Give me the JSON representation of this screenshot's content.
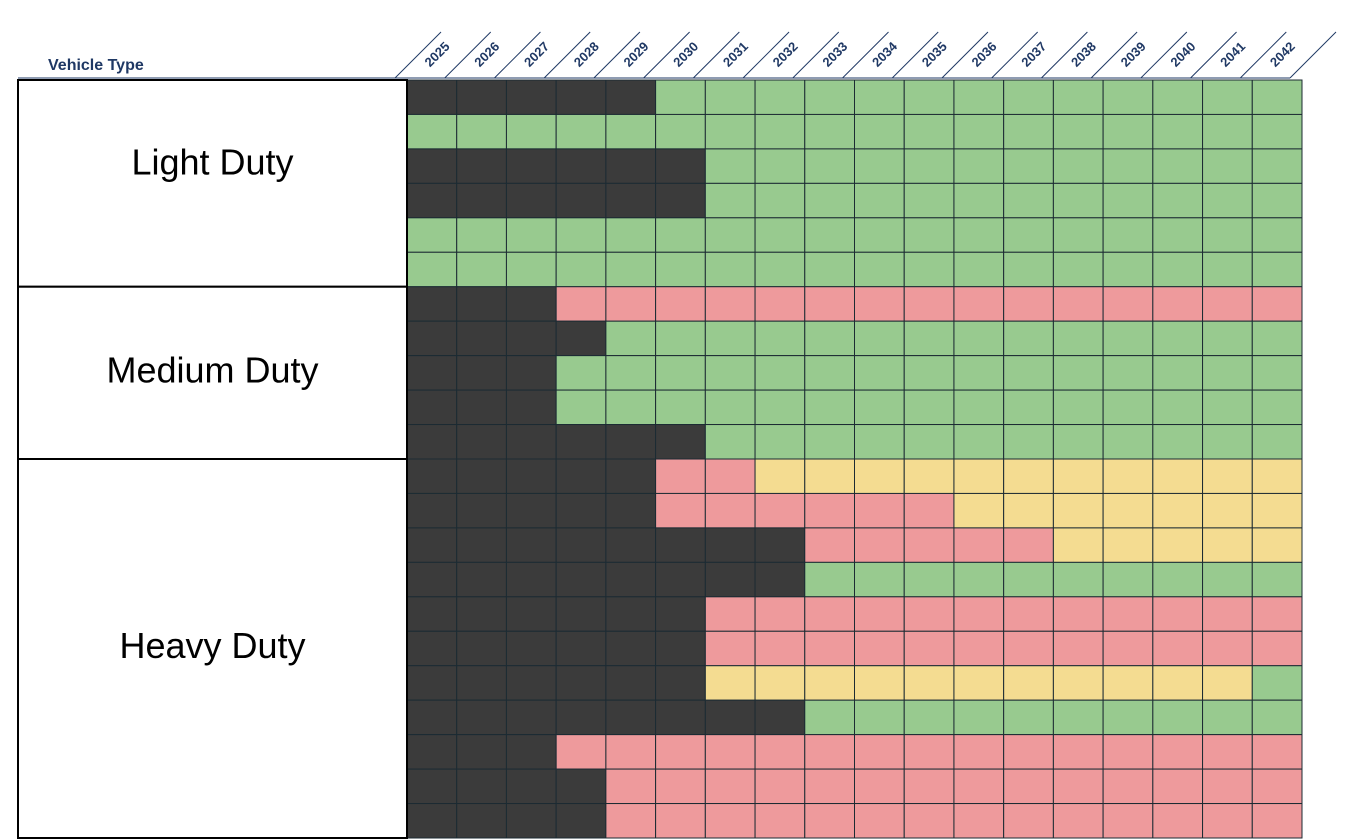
{
  "header": {
    "label": "Vehicle Type",
    "years": [
      "2025",
      "2026",
      "2027",
      "2028",
      "2029",
      "2030",
      "2031",
      "2032",
      "2033",
      "2034",
      "2035",
      "2036",
      "2037",
      "2038",
      "2039",
      "2040",
      "2041",
      "2042"
    ]
  },
  "groups": [
    {
      "label": "Light Duty",
      "rows": [
        [
          "#3b3b3b",
          "#3b3b3b",
          "#3b3b3b",
          "#3b3b3b",
          "#3b3b3b",
          "#98ca8f",
          "#98ca8f",
          "#98ca8f",
          "#98ca8f",
          "#98ca8f",
          "#98ca8f",
          "#98ca8f",
          "#98ca8f",
          "#98ca8f",
          "#98ca8f",
          "#98ca8f",
          "#98ca8f",
          "#98ca8f"
        ],
        [
          "#98ca8f",
          "#98ca8f",
          "#98ca8f",
          "#98ca8f",
          "#98ca8f",
          "#98ca8f",
          "#98ca8f",
          "#98ca8f",
          "#98ca8f",
          "#98ca8f",
          "#98ca8f",
          "#98ca8f",
          "#98ca8f",
          "#98ca8f",
          "#98ca8f",
          "#98ca8f",
          "#98ca8f",
          "#98ca8f"
        ],
        [
          "#3b3b3b",
          "#3b3b3b",
          "#3b3b3b",
          "#3b3b3b",
          "#3b3b3b",
          "#3b3b3b",
          "#98ca8f",
          "#98ca8f",
          "#98ca8f",
          "#98ca8f",
          "#98ca8f",
          "#98ca8f",
          "#98ca8f",
          "#98ca8f",
          "#98ca8f",
          "#98ca8f",
          "#98ca8f",
          "#98ca8f"
        ],
        [
          "#3b3b3b",
          "#3b3b3b",
          "#3b3b3b",
          "#3b3b3b",
          "#3b3b3b",
          "#3b3b3b",
          "#98ca8f",
          "#98ca8f",
          "#98ca8f",
          "#98ca8f",
          "#98ca8f",
          "#98ca8f",
          "#98ca8f",
          "#98ca8f",
          "#98ca8f",
          "#98ca8f",
          "#98ca8f",
          "#98ca8f"
        ],
        [
          "#98ca8f",
          "#98ca8f",
          "#98ca8f",
          "#98ca8f",
          "#98ca8f",
          "#98ca8f",
          "#98ca8f",
          "#98ca8f",
          "#98ca8f",
          "#98ca8f",
          "#98ca8f",
          "#98ca8f",
          "#98ca8f",
          "#98ca8f",
          "#98ca8f",
          "#98ca8f",
          "#98ca8f",
          "#98ca8f"
        ],
        [
          "#98ca8f",
          "#98ca8f",
          "#98ca8f",
          "#98ca8f",
          "#98ca8f",
          "#98ca8f",
          "#98ca8f",
          "#98ca8f",
          "#98ca8f",
          "#98ca8f",
          "#98ca8f",
          "#98ca8f",
          "#98ca8f",
          "#98ca8f",
          "#98ca8f",
          "#98ca8f",
          "#98ca8f",
          "#98ca8f"
        ]
      ]
    },
    {
      "label": "Medium Duty",
      "rows": [
        [
          "#3b3b3b",
          "#3b3b3b",
          "#3b3b3b",
          "#ee9a9c",
          "#ee9a9c",
          "#ee9a9c",
          "#ee9a9c",
          "#ee9a9c",
          "#ee9a9c",
          "#ee9a9c",
          "#ee9a9c",
          "#ee9a9c",
          "#ee9a9c",
          "#ee9a9c",
          "#ee9a9c",
          "#ee9a9c",
          "#ee9a9c",
          "#ee9a9c"
        ],
        [
          "#3b3b3b",
          "#3b3b3b",
          "#3b3b3b",
          "#3b3b3b",
          "#98ca8f",
          "#98ca8f",
          "#98ca8f",
          "#98ca8f",
          "#98ca8f",
          "#98ca8f",
          "#98ca8f",
          "#98ca8f",
          "#98ca8f",
          "#98ca8f",
          "#98ca8f",
          "#98ca8f",
          "#98ca8f",
          "#98ca8f"
        ],
        [
          "#3b3b3b",
          "#3b3b3b",
          "#3b3b3b",
          "#98ca8f",
          "#98ca8f",
          "#98ca8f",
          "#98ca8f",
          "#98ca8f",
          "#98ca8f",
          "#98ca8f",
          "#98ca8f",
          "#98ca8f",
          "#98ca8f",
          "#98ca8f",
          "#98ca8f",
          "#98ca8f",
          "#98ca8f",
          "#98ca8f"
        ],
        [
          "#3b3b3b",
          "#3b3b3b",
          "#3b3b3b",
          "#98ca8f",
          "#98ca8f",
          "#98ca8f",
          "#98ca8f",
          "#98ca8f",
          "#98ca8f",
          "#98ca8f",
          "#98ca8f",
          "#98ca8f",
          "#98ca8f",
          "#98ca8f",
          "#98ca8f",
          "#98ca8f",
          "#98ca8f",
          "#98ca8f"
        ],
        [
          "#3b3b3b",
          "#3b3b3b",
          "#3b3b3b",
          "#3b3b3b",
          "#3b3b3b",
          "#3b3b3b",
          "#98ca8f",
          "#98ca8f",
          "#98ca8f",
          "#98ca8f",
          "#98ca8f",
          "#98ca8f",
          "#98ca8f",
          "#98ca8f",
          "#98ca8f",
          "#98ca8f",
          "#98ca8f",
          "#98ca8f"
        ]
      ]
    },
    {
      "label": "Heavy Duty",
      "rows": [
        [
          "#3b3b3b",
          "#3b3b3b",
          "#3b3b3b",
          "#3b3b3b",
          "#3b3b3b",
          "#ee9a9c",
          "#ee9a9c",
          "#f4dc91",
          "#f4dc91",
          "#f4dc91",
          "#f4dc91",
          "#f4dc91",
          "#f4dc91",
          "#f4dc91",
          "#f4dc91",
          "#f4dc91",
          "#f4dc91",
          "#f4dc91"
        ],
        [
          "#3b3b3b",
          "#3b3b3b",
          "#3b3b3b",
          "#3b3b3b",
          "#3b3b3b",
          "#ee9a9c",
          "#ee9a9c",
          "#ee9a9c",
          "#ee9a9c",
          "#ee9a9c",
          "#ee9a9c",
          "#f4dc91",
          "#f4dc91",
          "#f4dc91",
          "#f4dc91",
          "#f4dc91",
          "#f4dc91",
          "#f4dc91"
        ],
        [
          "#3b3b3b",
          "#3b3b3b",
          "#3b3b3b",
          "#3b3b3b",
          "#3b3b3b",
          "#3b3b3b",
          "#3b3b3b",
          "#3b3b3b",
          "#ee9a9c",
          "#ee9a9c",
          "#ee9a9c",
          "#ee9a9c",
          "#ee9a9c",
          "#f4dc91",
          "#f4dc91",
          "#f4dc91",
          "#f4dc91",
          "#f4dc91"
        ],
        [
          "#3b3b3b",
          "#3b3b3b",
          "#3b3b3b",
          "#3b3b3b",
          "#3b3b3b",
          "#3b3b3b",
          "#3b3b3b",
          "#3b3b3b",
          "#98ca8f",
          "#98ca8f",
          "#98ca8f",
          "#98ca8f",
          "#98ca8f",
          "#98ca8f",
          "#98ca8f",
          "#98ca8f",
          "#98ca8f",
          "#98ca8f"
        ],
        [
          "#3b3b3b",
          "#3b3b3b",
          "#3b3b3b",
          "#3b3b3b",
          "#3b3b3b",
          "#3b3b3b",
          "#ee9a9c",
          "#ee9a9c",
          "#ee9a9c",
          "#ee9a9c",
          "#ee9a9c",
          "#ee9a9c",
          "#ee9a9c",
          "#ee9a9c",
          "#ee9a9c",
          "#ee9a9c",
          "#ee9a9c",
          "#ee9a9c"
        ],
        [
          "#3b3b3b",
          "#3b3b3b",
          "#3b3b3b",
          "#3b3b3b",
          "#3b3b3b",
          "#3b3b3b",
          "#ee9a9c",
          "#ee9a9c",
          "#ee9a9c",
          "#ee9a9c",
          "#ee9a9c",
          "#ee9a9c",
          "#ee9a9c",
          "#ee9a9c",
          "#ee9a9c",
          "#ee9a9c",
          "#ee9a9c",
          "#ee9a9c"
        ],
        [
          "#3b3b3b",
          "#3b3b3b",
          "#3b3b3b",
          "#3b3b3b",
          "#3b3b3b",
          "#3b3b3b",
          "#f4dc91",
          "#f4dc91",
          "#f4dc91",
          "#f4dc91",
          "#f4dc91",
          "#f4dc91",
          "#f4dc91",
          "#f4dc91",
          "#f4dc91",
          "#f4dc91",
          "#f4dc91",
          "#98ca8f"
        ],
        [
          "#3b3b3b",
          "#3b3b3b",
          "#3b3b3b",
          "#3b3b3b",
          "#3b3b3b",
          "#3b3b3b",
          "#3b3b3b",
          "#3b3b3b",
          "#98ca8f",
          "#98ca8f",
          "#98ca8f",
          "#98ca8f",
          "#98ca8f",
          "#98ca8f",
          "#98ca8f",
          "#98ca8f",
          "#98ca8f",
          "#98ca8f"
        ],
        [
          "#3b3b3b",
          "#3b3b3b",
          "#3b3b3b",
          "#ee9a9c",
          "#ee9a9c",
          "#ee9a9c",
          "#ee9a9c",
          "#ee9a9c",
          "#ee9a9c",
          "#ee9a9c",
          "#ee9a9c",
          "#ee9a9c",
          "#ee9a9c",
          "#ee9a9c",
          "#ee9a9c",
          "#ee9a9c",
          "#ee9a9c",
          "#ee9a9c"
        ],
        [
          "#3b3b3b",
          "#3b3b3b",
          "#3b3b3b",
          "#3b3b3b",
          "#ee9a9c",
          "#ee9a9c",
          "#ee9a9c",
          "#ee9a9c",
          "#ee9a9c",
          "#ee9a9c",
          "#ee9a9c",
          "#ee9a9c",
          "#ee9a9c",
          "#ee9a9c",
          "#ee9a9c",
          "#ee9a9c",
          "#ee9a9c",
          "#ee9a9c"
        ],
        [
          "#3b3b3b",
          "#3b3b3b",
          "#3b3b3b",
          "#3b3b3b",
          "#ee9a9c",
          "#ee9a9c",
          "#ee9a9c",
          "#ee9a9c",
          "#ee9a9c",
          "#ee9a9c",
          "#ee9a9c",
          "#ee9a9c",
          "#ee9a9c",
          "#ee9a9c",
          "#ee9a9c",
          "#ee9a9c",
          "#ee9a9c",
          "#ee9a9c"
        ]
      ]
    }
  ]
}
